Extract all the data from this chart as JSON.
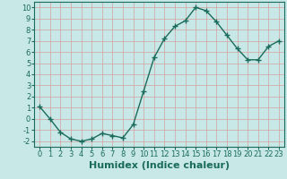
{
  "x": [
    0,
    1,
    2,
    3,
    4,
    5,
    6,
    7,
    8,
    9,
    10,
    11,
    12,
    13,
    14,
    15,
    16,
    17,
    18,
    19,
    20,
    21,
    22,
    23
  ],
  "y": [
    1.1,
    0.0,
    -1.2,
    -1.8,
    -2.0,
    -1.8,
    -1.3,
    -1.5,
    -1.7,
    -0.5,
    2.5,
    5.5,
    7.2,
    8.3,
    8.8,
    10.0,
    9.7,
    8.7,
    7.5,
    6.3,
    5.3,
    5.3,
    6.5,
    7.0
  ],
  "line_color": "#1a6b5a",
  "marker": "+",
  "marker_size": 4,
  "bg_color": "#c8e8e8",
  "grid_color": "#d4a0a0",
  "xlabel": "Humidex (Indice chaleur)",
  "xlim": [
    -0.5,
    23.5
  ],
  "ylim": [
    -2.5,
    10.5
  ],
  "yticks": [
    -2,
    -1,
    0,
    1,
    2,
    3,
    4,
    5,
    6,
    7,
    8,
    9,
    10
  ],
  "xtick_labels": [
    "0",
    "1",
    "2",
    "3",
    "4",
    "5",
    "6",
    "7",
    "8",
    "9",
    "10",
    "11",
    "12",
    "13",
    "14",
    "15",
    "16",
    "17",
    "18",
    "19",
    "20",
    "21",
    "22",
    "23"
  ],
  "tick_fontsize": 6,
  "xlabel_fontsize": 8,
  "line_width": 1.0
}
